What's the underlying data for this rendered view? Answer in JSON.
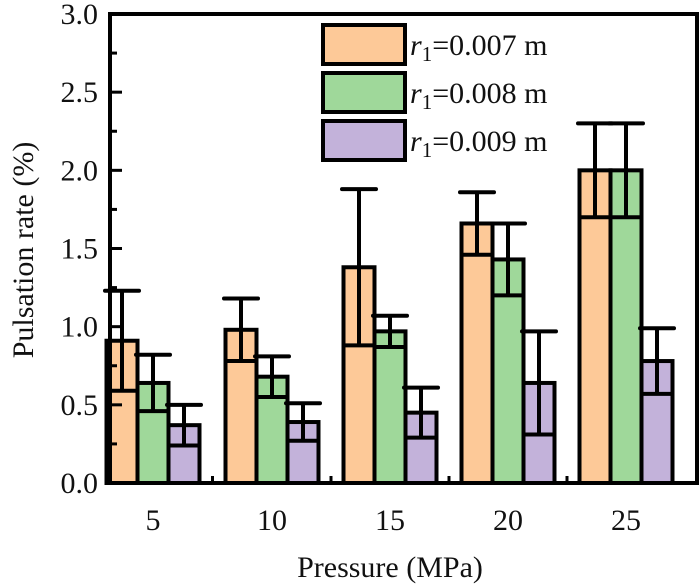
{
  "chart_data": {
    "type": "bar",
    "title": "",
    "xlabel": "Pressure (MPa)",
    "ylabel": "Pulsation rate (%)",
    "categories": [
      "5",
      "10",
      "15",
      "20",
      "25"
    ],
    "ylim": [
      0.0,
      3.0
    ],
    "yticks": [
      "0.0",
      "0.5",
      "1.0",
      "1.5",
      "2.0",
      "2.5",
      "3.0"
    ],
    "ytick_values": [
      0.0,
      0.5,
      1.0,
      1.5,
      2.0,
      2.5,
      3.0
    ],
    "y_minor_step": 0.25,
    "grid": false,
    "legend_position": "top-right",
    "error_bars": "symmetric",
    "series": [
      {
        "name": "r1=0.007 m",
        "symbol": "r",
        "subscript": "1",
        "suffix": "=0.007 m",
        "color": "#FDC998",
        "values": [
          0.91,
          0.98,
          1.38,
          1.66,
          2.0
        ],
        "errors": [
          0.32,
          0.2,
          0.5,
          0.2,
          0.3
        ]
      },
      {
        "name": "r1=0.008 m",
        "symbol": "r",
        "subscript": "1",
        "suffix": "=0.008 m",
        "color": "#9FD89A",
        "values": [
          0.64,
          0.68,
          0.97,
          1.43,
          2.0
        ],
        "errors": [
          0.18,
          0.13,
          0.1,
          0.23,
          0.3
        ]
      },
      {
        "name": "r1=0.009 m",
        "symbol": "r",
        "subscript": "1",
        "suffix": "=0.009 m",
        "color": "#C3B2DA",
        "values": [
          0.37,
          0.39,
          0.45,
          0.64,
          0.78
        ],
        "errors": [
          0.13,
          0.12,
          0.16,
          0.33,
          0.21
        ]
      }
    ]
  }
}
